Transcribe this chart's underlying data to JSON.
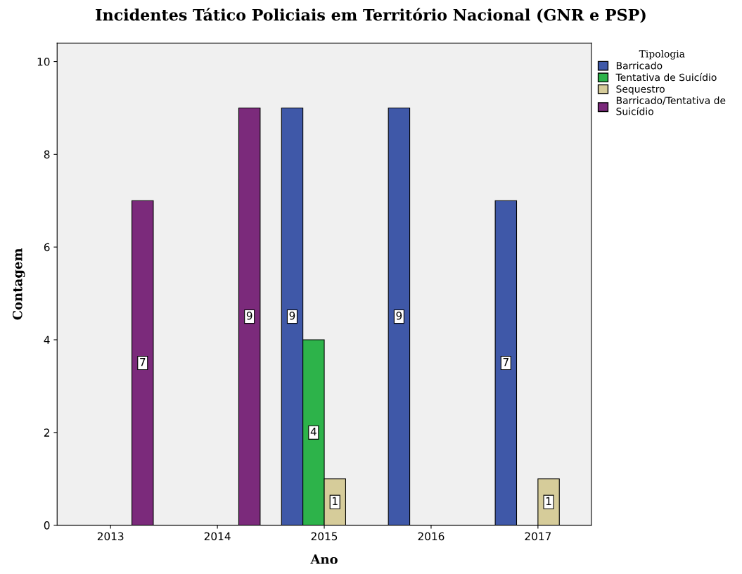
{
  "chart_data": {
    "type": "bar",
    "title": "Incidentes Tático Policiais em Território Nacional (GNR e PSP)",
    "xlabel": "Ano",
    "ylabel": "Contagem",
    "legend_title": "Tipologia",
    "categories": [
      "2013",
      "2014",
      "2015",
      "2016",
      "2017"
    ],
    "series": [
      {
        "name": "Barricado",
        "color": "#3f58a8",
        "values": [
          0,
          0,
          9,
          9,
          7
        ],
        "value_labels": [
          null,
          null,
          "9",
          "9",
          "7"
        ]
      },
      {
        "name": "Tentativa de Suicídio",
        "color": "#2db34a",
        "values": [
          0,
          0,
          4,
          0,
          0
        ],
        "value_labels": [
          null,
          null,
          "4",
          null,
          null
        ]
      },
      {
        "name": "Sequestro",
        "color": "#d6cc9a",
        "values": [
          0,
          0,
          1,
          0,
          1
        ],
        "value_labels": [
          null,
          null,
          "1",
          null,
          "1"
        ]
      },
      {
        "name": "Barricado/Tentativa de\nSuicídio",
        "color": "#7b2a7b",
        "values": [
          7,
          9,
          0,
          0,
          0
        ],
        "value_labels": [
          "7",
          "9",
          null,
          null,
          null
        ]
      }
    ],
    "ylim": [
      0,
      10.4
    ],
    "yticks": [
      0,
      2,
      4,
      6,
      8,
      10
    ],
    "grid": false,
    "legend": "top right"
  }
}
